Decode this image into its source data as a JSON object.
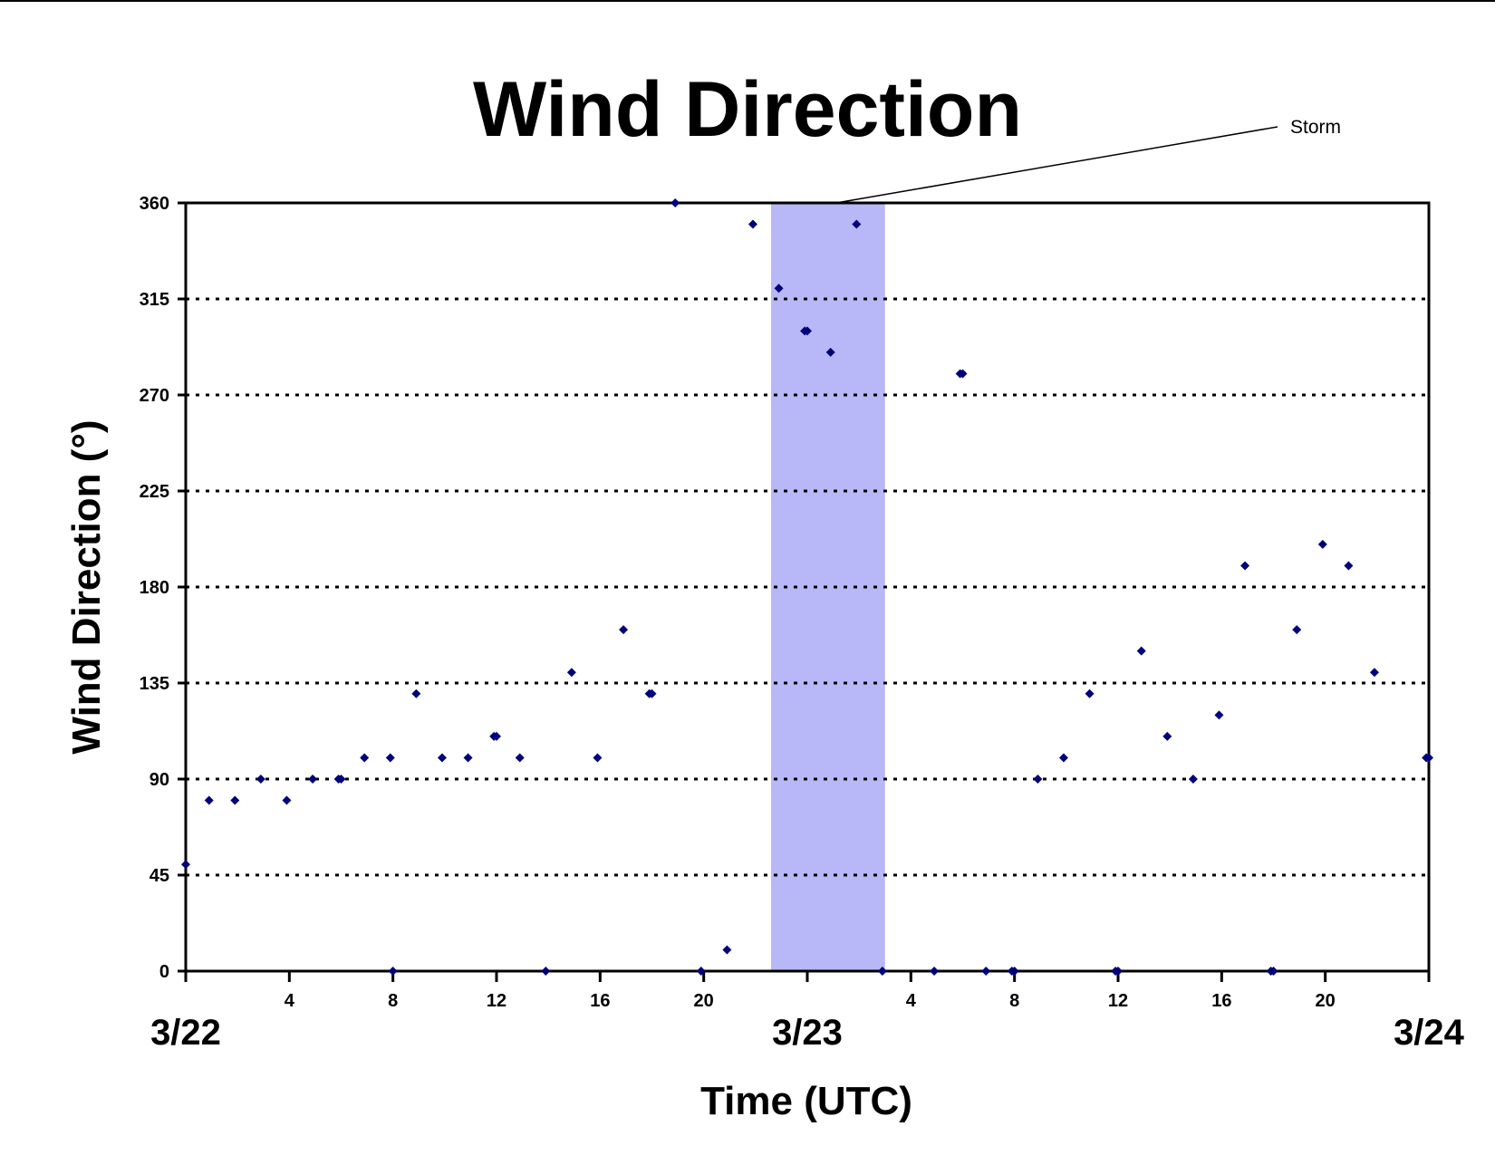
{
  "chart_data": {
    "type": "scatter",
    "title": "Wind Direction",
    "xlabel": "Time (UTC)",
    "ylabel": "Wind Direction (°)",
    "ylim": [
      0,
      360
    ],
    "y_ticks": [
      "0",
      "45",
      "90",
      "135",
      "180",
      "225",
      "270",
      "315",
      "360"
    ],
    "x_range_hours": [
      0,
      48
    ],
    "x_ticks": [
      {
        "hour": 4,
        "label": "4"
      },
      {
        "hour": 8,
        "label": "8"
      },
      {
        "hour": 12,
        "label": "12"
      },
      {
        "hour": 16,
        "label": "16"
      },
      {
        "hour": 20,
        "label": "20"
      },
      {
        "hour": 28,
        "label": "4"
      },
      {
        "hour": 32,
        "label": "8"
      },
      {
        "hour": 36,
        "label": "12"
      },
      {
        "hour": 40,
        "label": "16"
      },
      {
        "hour": 44,
        "label": "20"
      }
    ],
    "minor_tick_hours": [
      0,
      24,
      48
    ],
    "date_labels": [
      {
        "hour": 0,
        "label": "3/22"
      },
      {
        "hour": 24,
        "label": "3/23"
      },
      {
        "hour": 48,
        "label": "3/24"
      }
    ],
    "grid": "horizontal dotted",
    "shaded_region": {
      "x_start_hours": 22.6,
      "x_end_hours": 27.0,
      "label": "Storm",
      "color": "#b8b8f8"
    },
    "marker_color": "#00007a",
    "points": [
      [
        0,
        50
      ],
      [
        0.9,
        80
      ],
      [
        1.9,
        80
      ],
      [
        2.9,
        90
      ],
      [
        3.9,
        80
      ],
      [
        4.9,
        90
      ],
      [
        5.9,
        90
      ],
      [
        6.0,
        90
      ],
      [
        6.9,
        100
      ],
      [
        7.9,
        100
      ],
      [
        8.0,
        0
      ],
      [
        8.9,
        130
      ],
      [
        9.9,
        100
      ],
      [
        10.9,
        100
      ],
      [
        11.9,
        110
      ],
      [
        12.0,
        110
      ],
      [
        12.9,
        100
      ],
      [
        13.9,
        0
      ],
      [
        14.9,
        140
      ],
      [
        15.9,
        100
      ],
      [
        16.9,
        160
      ],
      [
        17.9,
        130
      ],
      [
        18.0,
        130
      ],
      [
        18.9,
        360
      ],
      [
        19.9,
        0
      ],
      [
        20.9,
        10
      ],
      [
        21.9,
        350
      ],
      [
        22.9,
        320
      ],
      [
        23.9,
        300
      ],
      [
        24.0,
        300
      ],
      [
        24.9,
        290
      ],
      [
        25.9,
        350
      ],
      [
        26.9,
        0
      ],
      [
        28.9,
        0
      ],
      [
        29.9,
        280
      ],
      [
        30.0,
        280
      ],
      [
        30.9,
        0
      ],
      [
        31.9,
        0
      ],
      [
        32.0,
        0
      ],
      [
        32.9,
        90
      ],
      [
        33.9,
        100
      ],
      [
        34.9,
        130
      ],
      [
        35.9,
        0
      ],
      [
        36.0,
        0
      ],
      [
        36.9,
        150
      ],
      [
        37.9,
        110
      ],
      [
        38.9,
        90
      ],
      [
        39.9,
        120
      ],
      [
        40.9,
        190
      ],
      [
        41.9,
        0
      ],
      [
        42.0,
        0
      ],
      [
        42.9,
        160
      ],
      [
        43.9,
        200
      ],
      [
        44.9,
        190
      ],
      [
        45.9,
        140
      ],
      [
        47.9,
        100
      ],
      [
        48.0,
        100
      ]
    ]
  }
}
